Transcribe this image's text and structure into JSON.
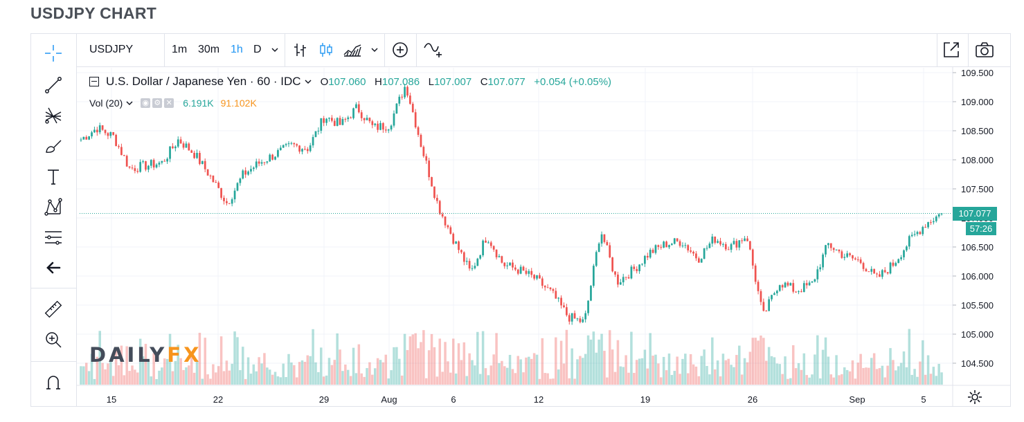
{
  "page": {
    "title": "USDJPY CHART"
  },
  "toolbar": {
    "symbol": "USDJPY",
    "intervals": [
      "1m",
      "30m",
      "1h",
      "D"
    ],
    "active_interval": "1h",
    "icons": [
      "chevron-down-icon",
      "bar-style-icon",
      "candle-style-icon",
      "area-style-icon",
      "chevron-down-icon",
      "add-compare-icon",
      "indicators-icon",
      "popout-icon",
      "camera-icon"
    ]
  },
  "tools": [
    "crosshair-icon",
    "trendline-icon",
    "fib-icon",
    "brush-icon",
    "text-icon",
    "pattern-icon",
    "measure-lines-icon",
    "back-arrow-icon",
    "ruler-icon",
    "zoom-in-icon",
    "magnet-icon"
  ],
  "legend": {
    "title": "U.S. Dollar / Japanese Yen · 60 · IDC",
    "o_label": "O",
    "o": "107.060",
    "h_label": "H",
    "h": "107.086",
    "l_label": "L",
    "l": "107.007",
    "c_label": "C",
    "c": "107.077",
    "change": "+0.054 (+0.05%)"
  },
  "volume_legend": {
    "label": "Vol (20)",
    "v1": "6.191K",
    "v2": "91.102K"
  },
  "logo": {
    "left": "DAILY",
    "right": "FX"
  },
  "last_price_label": "107.077",
  "countdown_label": "57:26",
  "colors": {
    "up": "#26a69a",
    "down": "#ef5350",
    "accent": "#2196f3",
    "logo_orange": "#f7941d"
  },
  "chart_data": {
    "type": "candlestick",
    "symbol": "USDJPY",
    "interval": "60",
    "y_ticks": [
      "109.500",
      "109.000",
      "108.500",
      "108.000",
      "107.500",
      "107.000",
      "106.500",
      "106.000",
      "105.500",
      "105.000",
      "104.500"
    ],
    "ylim": [
      104.2,
      109.6
    ],
    "x_ticks": [
      "15",
      "22",
      "29",
      "Aug",
      "6",
      "12",
      "19",
      "26",
      "Sep",
      "5"
    ],
    "last_price": 107.077,
    "close_path": [
      {
        "x": "Jul 12",
        "y": 108.35
      },
      {
        "x": "Jul 13",
        "y": 108.55
      },
      {
        "x": "Jul 14",
        "y": 108.4
      },
      {
        "x": "Jul 15",
        "y": 107.85
      },
      {
        "x": "Jul 16",
        "y": 107.9
      },
      {
        "x": "Jul 17",
        "y": 107.95
      },
      {
        "x": "Jul 18",
        "y": 108.35
      },
      {
        "x": "Jul 19",
        "y": 108.1
      },
      {
        "x": "Jul 20",
        "y": 107.7
      },
      {
        "x": "Jul 21",
        "y": 107.25
      },
      {
        "x": "Jul 22",
        "y": 107.75
      },
      {
        "x": "Jul 23",
        "y": 107.95
      },
      {
        "x": "Jul 24",
        "y": 108.1
      },
      {
        "x": "Jul 25",
        "y": 108.25
      },
      {
        "x": "Jul 26",
        "y": 108.2
      },
      {
        "x": "Jul 27",
        "y": 108.75
      },
      {
        "x": "Jul 28",
        "y": 108.6
      },
      {
        "x": "Jul 29",
        "y": 108.9
      },
      {
        "x": "Jul 30",
        "y": 108.55
      },
      {
        "x": "Jul 31",
        "y": 108.6
      },
      {
        "x": "Aug 1",
        "y": 109.3
      },
      {
        "x": "Aug 2",
        "y": 108.2
      },
      {
        "x": "Aug 3",
        "y": 107.2
      },
      {
        "x": "Aug 4",
        "y": 106.6
      },
      {
        "x": "Aug 5",
        "y": 106.05
      },
      {
        "x": "Aug 6",
        "y": 106.7
      },
      {
        "x": "Aug 7",
        "y": 106.2
      },
      {
        "x": "Aug 8",
        "y": 106.1
      },
      {
        "x": "Aug 9",
        "y": 105.95
      },
      {
        "x": "Aug 10",
        "y": 105.7
      },
      {
        "x": "Aug 11",
        "y": 105.3
      },
      {
        "x": "Aug 12",
        "y": 105.2
      },
      {
        "x": "Aug 13",
        "y": 106.8
      },
      {
        "x": "Aug 14",
        "y": 105.9
      },
      {
        "x": "Aug 15",
        "y": 106.1
      },
      {
        "x": "Aug 16",
        "y": 106.4
      },
      {
        "x": "Aug 17",
        "y": 106.55
      },
      {
        "x": "Aug 18",
        "y": 106.6
      },
      {
        "x": "Aug 19",
        "y": 106.3
      },
      {
        "x": "Aug 20",
        "y": 106.65
      },
      {
        "x": "Aug 21",
        "y": 106.5
      },
      {
        "x": "Aug 22",
        "y": 106.7
      },
      {
        "x": "Aug 23",
        "y": 105.3
      },
      {
        "x": "Aug 24",
        "y": 105.9
      },
      {
        "x": "Aug 25",
        "y": 105.75
      },
      {
        "x": "Aug 26",
        "y": 105.85
      },
      {
        "x": "Aug 27",
        "y": 106.55
      },
      {
        "x": "Aug 28",
        "y": 106.35
      },
      {
        "x": "Aug 29",
        "y": 106.25
      },
      {
        "x": "Aug 30",
        "y": 105.95
      },
      {
        "x": "Aug 31",
        "y": 106.2
      },
      {
        "x": "Sep 1",
        "y": 106.6
      },
      {
        "x": "Sep 2",
        "y": 106.9
      },
      {
        "x": "Sep 3",
        "y": 107.08
      }
    ]
  }
}
